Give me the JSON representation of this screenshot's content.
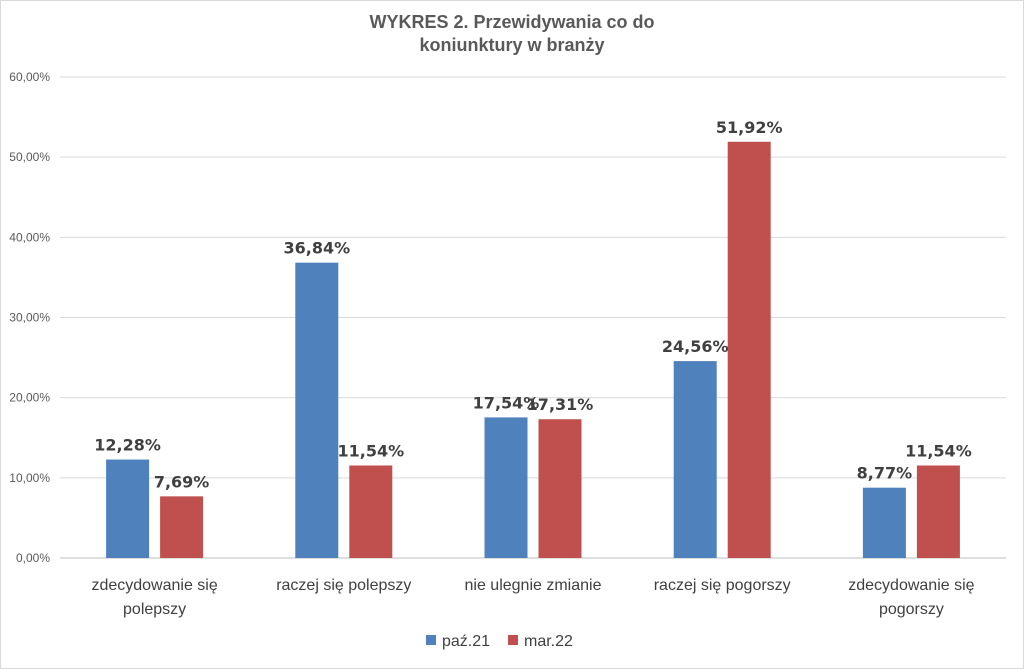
{
  "chart_data": {
    "type": "bar",
    "title": "WYKRES 2. Przewidywania co do koniunktury w branży",
    "title_lines": [
      "WYKRES 2. Przewidywania co do",
      "koniunktury w branży"
    ],
    "categories": [
      [
        "zdecydowanie się",
        "polepszy"
      ],
      [
        "raczej się polepszy"
      ],
      [
        "nie ulegnie zmianie"
      ],
      [
        "raczej się pogorszy"
      ],
      [
        "zdecydowanie się",
        "pogorszy"
      ]
    ],
    "series": [
      {
        "name": "paź.21",
        "color": "#4f81bd",
        "values": [
          12.28,
          36.84,
          17.54,
          24.56,
          8.77
        ],
        "labels": [
          "12,28%",
          "36,84%",
          "17,54%",
          "24,56%",
          "8,77%"
        ]
      },
      {
        "name": "mar.22",
        "color": "#c0504d",
        "values": [
          7.69,
          11.54,
          17.31,
          51.92,
          11.54
        ],
        "labels": [
          "7,69%",
          "11,54%",
          "17,31%",
          "51,92%",
          "11,54%"
        ]
      }
    ],
    "ylim": [
      0,
      60
    ],
    "yticks": [
      0,
      10,
      20,
      30,
      40,
      50,
      60
    ],
    "ytick_labels": [
      "0,00%",
      "10,00%",
      "20,00%",
      "30,00%",
      "40,00%",
      "50,00%",
      "60,00%"
    ],
    "xlabel": "",
    "ylabel": "",
    "grid": true,
    "legend_position": "bottom"
  }
}
